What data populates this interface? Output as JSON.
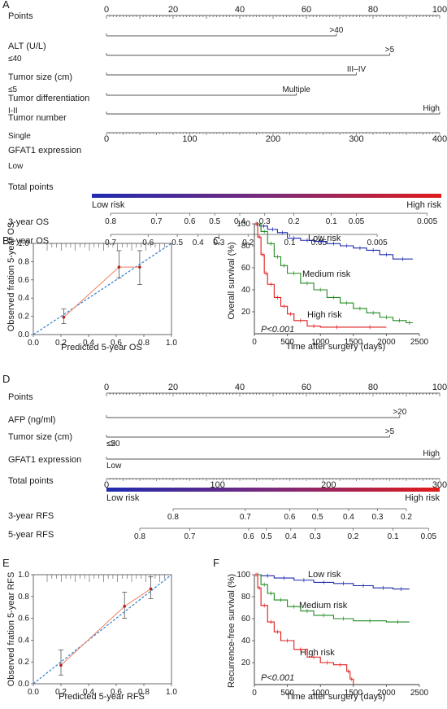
{
  "panels": {
    "A": {
      "label": "A",
      "total_label": "Total points",
      "low_risk": "Low risk",
      "high_risk": "High risk",
      "rows": [
        {
          "name": "Points",
          "ticks": [
            "0",
            "20",
            "40",
            "60",
            "80",
            "100"
          ]
        },
        {
          "name": "ALT (U/L)",
          "low": "≤40",
          "high": ">40"
        },
        {
          "name": "Tumor size (cm)",
          "low": "≤5",
          "high": ">5"
        },
        {
          "name": "Tumor differentiation",
          "low": "I-II",
          "high": "III–IV"
        },
        {
          "name": "Tumor number",
          "low": "Single",
          "high": "Multiple"
        },
        {
          "name": "GFAT1 expression",
          "low": "Low",
          "high": "High"
        }
      ],
      "total_ticks": [
        "0",
        "100",
        "200",
        "300",
        "400"
      ],
      "survival_rows": [
        {
          "name": "3-year OS",
          "ticks": [
            "0.8",
            "0.7",
            "0.6",
            "0.5",
            "0.4",
            "0.3",
            "0.2",
            "0.1",
            "0.05",
            "0.005"
          ]
        },
        {
          "name": "5-year OS",
          "ticks": [
            "0.7",
            "0.6",
            "0.5",
            "0.4",
            "0.3",
            "0.2",
            "0.1",
            "0.05",
            "0.005"
          ]
        }
      ]
    },
    "D": {
      "label": "D",
      "total_label": "Total points",
      "low_risk": "Low risk",
      "high_risk": "High risk",
      "rows": [
        {
          "name": "Points",
          "ticks": [
            "0",
            "20",
            "40",
            "60",
            "80",
            "100"
          ]
        },
        {
          "name": "AFP (ng/ml)",
          "low": "≤20",
          "high": ">20"
        },
        {
          "name": "Tumor size (cm)",
          "low": "≤5",
          "high": ">5"
        },
        {
          "name": "GFAT1 expression",
          "low": "Low",
          "high": "High"
        }
      ],
      "total_ticks": [
        "0",
        "100",
        "200",
        "300"
      ],
      "survival_rows": [
        {
          "name": "3-year RFS",
          "ticks": [
            "0.8",
            "0.7",
            "0.6",
            "0.5",
            "0.4",
            "0.3",
            "0.2"
          ]
        },
        {
          "name": "5-year RFS",
          "ticks": [
            "0.8",
            "0.7",
            "0.6",
            "0.5",
            "0.4",
            "0.3",
            "0.2",
            "0.1",
            "0.05"
          ]
        }
      ]
    },
    "B": {
      "label": "B",
      "xlabel": "Predicted 5-year OS",
      "ylabel": "Observed fration 5-year OS",
      "ticks": [
        "0.0",
        "0.2",
        "0.4",
        "0.6",
        "0.8",
        "1.0"
      ]
    },
    "E": {
      "label": "E",
      "xlabel": "Predicted 5-year RFS",
      "ylabel": "Observed fration 5-year RFS",
      "xticks": [
        "0.0",
        "0.2",
        "0.4",
        "0.6",
        "0.8",
        "1.0"
      ],
      "yticks": [
        "0.0",
        "0.2",
        "0.4",
        "0.6",
        "0.8",
        "1.0"
      ]
    },
    "C": {
      "label": "C",
      "xlabel": "Time after surgery (days)",
      "ylabel": "Overall survival (%)",
      "xticks": [
        "0",
        "500",
        "1000",
        "1500",
        "2000",
        "2500"
      ],
      "yticks": [
        "20",
        "40",
        "60",
        "80",
        "100"
      ],
      "pvalue": "P<0.001",
      "legend": [
        "Low risk",
        "Medium risk",
        "High risk"
      ]
    },
    "F": {
      "label": "F",
      "xlabel": "Time after surgery (days)",
      "ylabel": "Recurrence-free survival (%)",
      "xticks": [
        "0",
        "500",
        "1000",
        "1500",
        "2000",
        "2500"
      ],
      "yticks": [
        "20",
        "40",
        "60",
        "80",
        "100"
      ],
      "pvalue": "P<0.001",
      "legend": [
        "Low risk",
        "Medium risk",
        "High risk"
      ]
    }
  },
  "colors": {
    "low": "#1f2bb0",
    "medium": "#1f8a1f",
    "high": "#e01b1b",
    "calib": "#f08060",
    "ideal": "#2f7fd0",
    "point": "#b02020"
  },
  "chart_data": [
    {
      "type": "nomogram",
      "panel": "A",
      "points_range": [
        0,
        100
      ],
      "variables": [
        {
          "name": "ALT (U/L)",
          "levels": [
            "≤40",
            ">40"
          ],
          "points": [
            0,
            69
          ]
        },
        {
          "name": "Tumor size (cm)",
          "levels": [
            "≤5",
            ">5"
          ],
          "points": [
            0,
            85
          ]
        },
        {
          "name": "Tumor differentiation",
          "levels": [
            "I-II",
            "III–IV"
          ],
          "points": [
            0,
            75
          ]
        },
        {
          "name": "Tumor number",
          "levels": [
            "Single",
            "Multiple"
          ],
          "points": [
            0,
            57
          ]
        },
        {
          "name": "GFAT1 expression",
          "levels": [
            "Low",
            "High"
          ],
          "points": [
            0,
            100
          ]
        }
      ],
      "total_points_range": [
        0,
        400
      ],
      "survival_scales": [
        {
          "name": "3-year OS",
          "probabilities": [
            0.8,
            0.7,
            0.6,
            0.5,
            0.4,
            0.3,
            0.2,
            0.1,
            0.05,
            0.005
          ],
          "total_points": [
            5,
            60,
            100,
            130,
            160,
            190,
            225,
            270,
            300,
            385
          ]
        },
        {
          "name": "5-year OS",
          "probabilities": [
            0.7,
            0.6,
            0.5,
            0.4,
            0.3,
            0.2,
            0.1,
            0.05,
            0.005
          ],
          "total_points": [
            5,
            50,
            85,
            110,
            135,
            170,
            220,
            255,
            325
          ]
        }
      ]
    },
    {
      "type": "nomogram",
      "panel": "D",
      "points_range": [
        0,
        100
      ],
      "variables": [
        {
          "name": "AFP (ng/ml)",
          "levels": [
            "≤20",
            ">20"
          ],
          "points": [
            0,
            88
          ]
        },
        {
          "name": "Tumor size (cm)",
          "levels": [
            "≤5",
            ">5"
          ],
          "points": [
            0,
            85
          ]
        },
        {
          "name": "GFAT1 expression",
          "levels": [
            "Low",
            "High"
          ],
          "points": [
            0,
            100
          ]
        }
      ],
      "total_points_range": [
        0,
        300
      ],
      "survival_scales": [
        {
          "name": "3-year RFS",
          "probabilities": [
            0.8,
            0.7,
            0.6,
            0.5,
            0.4,
            0.3,
            0.2
          ],
          "total_points": [
            60,
            125,
            165,
            190,
            218,
            244,
            270
          ]
        },
        {
          "name": "5-year RFS",
          "probabilities": [
            0.8,
            0.7,
            0.6,
            0.5,
            0.4,
            0.3,
            0.2,
            0.1,
            0.05
          ],
          "total_points": [
            30,
            75,
            128,
            144,
            166,
            188,
            222,
            258,
            290
          ]
        }
      ]
    },
    {
      "type": "scatter",
      "panel": "B",
      "xlim": [
        0,
        1
      ],
      "ylim": [
        0,
        1
      ],
      "points": [
        {
          "x": 0.22,
          "y": 0.19,
          "lo": 0.12,
          "hi": 0.28
        },
        {
          "x": 0.62,
          "y": 0.74,
          "lo": 0.62,
          "hi": 0.92
        },
        {
          "x": 0.77,
          "y": 0.74,
          "lo": 0.55,
          "hi": 0.92
        }
      ],
      "ideal_line": [
        [
          0,
          0
        ],
        [
          1,
          1
        ]
      ]
    },
    {
      "type": "scatter",
      "panel": "E",
      "xlim": [
        0,
        1
      ],
      "ylim": [
        0,
        1
      ],
      "points": [
        {
          "x": 0.2,
          "y": 0.17,
          "lo": 0.08,
          "hi": 0.31
        },
        {
          "x": 0.66,
          "y": 0.71,
          "lo": 0.6,
          "hi": 0.84
        },
        {
          "x": 0.85,
          "y": 0.87,
          "lo": 0.78,
          "hi": 0.98
        }
      ],
      "ideal_line": [
        [
          0,
          0
        ],
        [
          1,
          1
        ]
      ]
    },
    {
      "type": "line",
      "panel": "C",
      "xlim": [
        0,
        2500
      ],
      "ylim": [
        0,
        100
      ],
      "series": [
        {
          "name": "Low risk",
          "x": [
            0,
            80,
            200,
            350,
            500,
            700,
            900,
            1100,
            1300,
            1500,
            1700,
            1900,
            2100,
            2400
          ],
          "y": [
            100,
            98,
            95,
            92,
            87,
            85,
            84,
            82,
            80,
            78,
            76,
            72,
            68,
            68
          ]
        },
        {
          "name": "Medium risk",
          "x": [
            0,
            100,
            200,
            300,
            400,
            500,
            700,
            900,
            1100,
            1300,
            1500,
            1700,
            1900,
            2100,
            2300,
            2400
          ],
          "y": [
            100,
            93,
            82,
            70,
            62,
            55,
            46,
            40,
            33,
            28,
            23,
            19,
            15,
            12,
            10,
            10
          ]
        },
        {
          "name": "High risk",
          "x": [
            0,
            50,
            100,
            150,
            200,
            300,
            400,
            500,
            600,
            800,
            1000,
            1500,
            2000
          ],
          "y": [
            100,
            88,
            72,
            55,
            45,
            33,
            25,
            18,
            12,
            7,
            6,
            6,
            6
          ]
        }
      ]
    },
    {
      "type": "line",
      "panel": "F",
      "xlim": [
        0,
        2500
      ],
      "ylim": [
        0,
        100
      ],
      "series": [
        {
          "name": "Low risk",
          "x": [
            0,
            100,
            300,
            600,
            900,
            1200,
            1500,
            1800,
            2100,
            2350
          ],
          "y": [
            100,
            99,
            97,
            95,
            93,
            92,
            90,
            88,
            87,
            87
          ]
        },
        {
          "name": "Medium risk",
          "x": [
            0,
            100,
            200,
            300,
            500,
            700,
            900,
            1200,
            1500,
            2000,
            2350
          ],
          "y": [
            100,
            91,
            83,
            77,
            71,
            67,
            63,
            60,
            58,
            57,
            57
          ]
        },
        {
          "name": "High risk",
          "x": [
            0,
            50,
            100,
            200,
            300,
            400,
            600,
            800,
            1000,
            1200,
            1400,
            1450,
            1500
          ],
          "y": [
            100,
            88,
            72,
            57,
            48,
            40,
            32,
            25,
            20,
            18,
            12,
            5,
            0
          ]
        }
      ]
    }
  ]
}
